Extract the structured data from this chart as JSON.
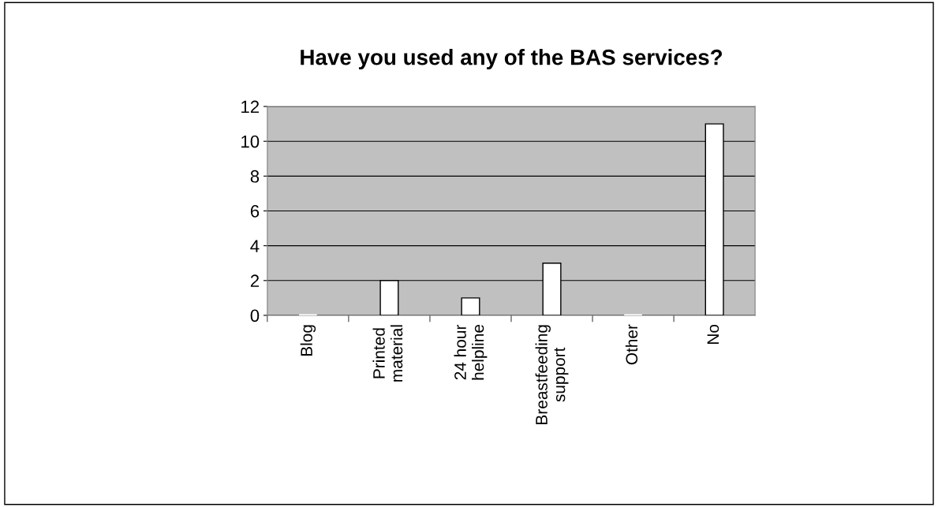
{
  "chart_data": {
    "type": "bar",
    "title": "Have you used any of the BAS services?",
    "categories": [
      "Blog",
      "Printed material",
      "24 hour helpline",
      "Breastfeeding support",
      "Other",
      "No"
    ],
    "values": [
      0,
      2,
      1,
      3,
      0,
      11
    ],
    "color": "#ffffff",
    "ylim": [
      0,
      12
    ],
    "yticks": [
      0,
      2,
      4,
      6,
      8,
      10,
      12
    ],
    "grid": "y",
    "legend": false
  }
}
